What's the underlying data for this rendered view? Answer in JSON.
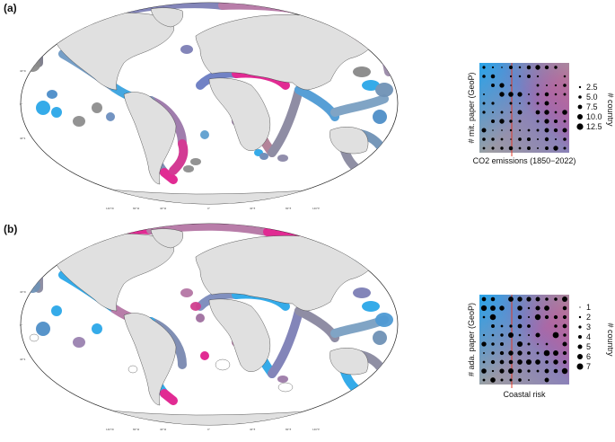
{
  "figure": {
    "panels": [
      {
        "id": "a",
        "label": "(a)",
        "inset": {
          "xlabel": "CO2 emissions (1850−2022)",
          "ylabel": "# mit. paper (GeoP)",
          "legend_title": "# country",
          "legend_values": [
            "2.5",
            "5.0",
            "7.5",
            "10.0",
            "12.5"
          ]
        }
      },
      {
        "id": "b",
        "label": "(b)",
        "inset": {
          "xlabel": "Coastal risk",
          "ylabel": "# ada. paper (GeoP)",
          "legend_title": "# country",
          "legend_values": [
            "1",
            "2",
            "3",
            "4",
            "5",
            "6",
            "7"
          ]
        }
      }
    ],
    "map_longitude_ticks": [
      "180°W",
      "160°W",
      "140°W",
      "120°W",
      "100°W",
      "80°W",
      "60°W",
      "40°W",
      "20°W",
      "0°",
      "20°E",
      "40°E",
      "60°E",
      "80°E",
      "100°E",
      "120°E",
      "140°E",
      "160°E",
      "180°E"
    ],
    "map_latitude_ticks": [
      "80°N",
      "60°N",
      "40°N",
      "20°N",
      "0°",
      "20°S",
      "40°S",
      "60°S",
      "80°S"
    ],
    "colors": {
      "land": "#e0e0e0",
      "border": "#333333",
      "low_low": "#a0a0a0",
      "cyan": "#2ba7e8",
      "magenta": "#e0208e",
      "mixed": "#7e6fb1"
    }
  }
}
